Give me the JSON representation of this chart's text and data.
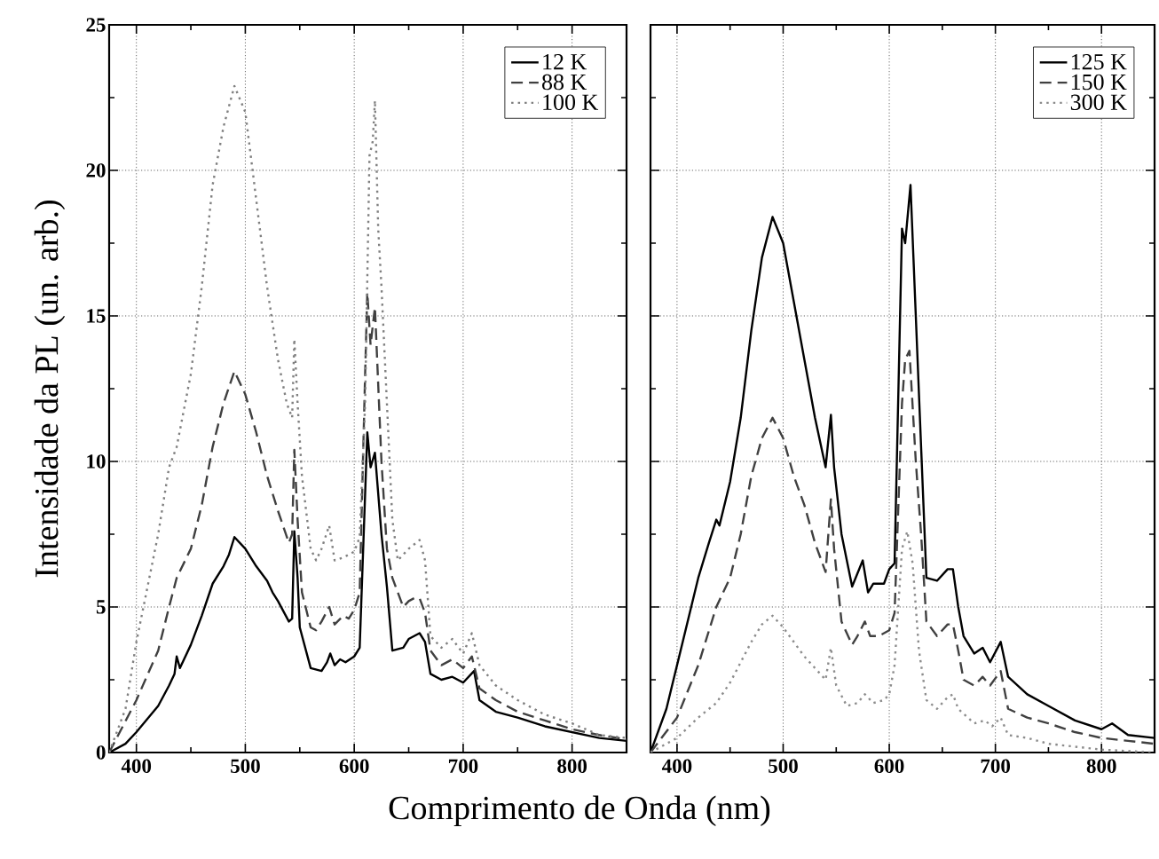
{
  "chart_data": [
    {
      "type": "line",
      "xlabel": "Comprimento de Onda (nm)",
      "ylabel": "Intensidade da PL (un. arb.)",
      "xlim": [
        375,
        850
      ],
      "ylim": [
        0,
        25
      ],
      "xticks": [
        400,
        500,
        600,
        700,
        800
      ],
      "yticks": [
        0,
        5,
        10,
        15,
        20,
        25
      ],
      "grid": true,
      "legend": "top right",
      "series": [
        {
          "name": "12 K",
          "color": "#000000",
          "line_style": "solid",
          "x": [
            375,
            390,
            400,
            420,
            430,
            435,
            437,
            440,
            450,
            460,
            470,
            480,
            485,
            490,
            500,
            510,
            520,
            525,
            530,
            540,
            543,
            545,
            548,
            550,
            560,
            570,
            575,
            578,
            582,
            587,
            592,
            600,
            605,
            612,
            615,
            619,
            625,
            630,
            635,
            645,
            650,
            660,
            665,
            670,
            680,
            690,
            700,
            710,
            715,
            730,
            750,
            775,
            800,
            825,
            850
          ],
          "values": [
            0,
            0.3,
            0.7,
            1.6,
            2.3,
            2.7,
            3.3,
            2.9,
            3.7,
            4.7,
            5.8,
            6.4,
            6.8,
            7.4,
            7.0,
            6.4,
            5.9,
            5.5,
            5.2,
            4.5,
            4.6,
            7.6,
            6.0,
            4.3,
            2.9,
            2.8,
            3.1,
            3.4,
            3.0,
            3.2,
            3.1,
            3.3,
            3.6,
            11.0,
            9.8,
            10.3,
            7.5,
            5.7,
            3.5,
            3.6,
            3.9,
            4.1,
            3.8,
            2.7,
            2.5,
            2.6,
            2.4,
            2.8,
            1.8,
            1.4,
            1.2,
            0.9,
            0.7,
            0.5,
            0.4
          ]
        },
        {
          "name": "88 K",
          "color": "#404040",
          "line_style": "dashed",
          "x": [
            375,
            400,
            420,
            430,
            437,
            450,
            460,
            470,
            480,
            490,
            500,
            510,
            520,
            530,
            540,
            543,
            545,
            548,
            552,
            560,
            565,
            570,
            577,
            582,
            590,
            595,
            600,
            605,
            610,
            612,
            615,
            619,
            625,
            630,
            635,
            645,
            650,
            655,
            660,
            665,
            670,
            680,
            690,
            700,
            708,
            715,
            730,
            750,
            775,
            800,
            825,
            850
          ],
          "values": [
            0,
            1.8,
            3.5,
            5.0,
            6.0,
            7.0,
            8.5,
            10.5,
            12.0,
            13.1,
            12.3,
            11.0,
            9.5,
            8.3,
            7.2,
            7.5,
            10.4,
            8.0,
            5.5,
            4.3,
            4.2,
            4.5,
            5.0,
            4.4,
            4.7,
            4.6,
            4.9,
            5.5,
            13.0,
            15.8,
            14.0,
            15.3,
            10.0,
            7.0,
            6.0,
            5.0,
            5.2,
            5.3,
            5.3,
            4.8,
            3.5,
            3.0,
            3.2,
            2.9,
            3.3,
            2.2,
            1.8,
            1.4,
            1.1,
            0.8,
            0.6,
            0.45
          ]
        },
        {
          "name": "100 K",
          "color": "#808080",
          "line_style": "dotted",
          "x": [
            375,
            390,
            400,
            420,
            430,
            437,
            450,
            460,
            470,
            480,
            490,
            500,
            510,
            520,
            530,
            538,
            543,
            545,
            548,
            552,
            560,
            565,
            570,
            577,
            582,
            590,
            600,
            605,
            610,
            614,
            617,
            619,
            622,
            625,
            630,
            635,
            640,
            650,
            660,
            665,
            670,
            680,
            690,
            700,
            708,
            715,
            730,
            750,
            775,
            800,
            825,
            850
          ],
          "values": [
            0,
            1.5,
            3.8,
            7.5,
            9.8,
            10.5,
            13.0,
            16.0,
            19.5,
            21.5,
            22.9,
            22.0,
            19.0,
            16.0,
            13.5,
            12.0,
            11.5,
            14.2,
            12.0,
            9.5,
            7.0,
            6.6,
            7.0,
            7.8,
            6.6,
            6.7,
            6.9,
            7.4,
            12.0,
            20.5,
            21.0,
            22.4,
            18.0,
            16.0,
            12.0,
            8.0,
            6.6,
            7.0,
            7.3,
            6.6,
            4.0,
            3.6,
            3.9,
            3.4,
            4.1,
            3.0,
            2.3,
            1.8,
            1.3,
            1.0,
            0.6,
            0.5
          ]
        }
      ]
    },
    {
      "type": "line",
      "xlim": [
        375,
        850
      ],
      "ylim": [
        0,
        25
      ],
      "xticks": [
        400,
        500,
        600,
        700,
        800
      ],
      "yticks": [
        0,
        5,
        10,
        15,
        20,
        25
      ],
      "tick_labels": "x",
      "grid": true,
      "legend": "top right",
      "series": [
        {
          "name": "125 K",
          "color": "#000000",
          "line_style": "solid",
          "x": [
            375,
            390,
            400,
            420,
            430,
            437,
            440,
            450,
            460,
            470,
            480,
            490,
            500,
            510,
            520,
            530,
            540,
            545,
            548,
            555,
            565,
            575,
            580,
            585,
            595,
            600,
            605,
            612,
            615,
            620,
            625,
            630,
            635,
            645,
            655,
            660,
            665,
            670,
            680,
            688,
            695,
            705,
            712,
            730,
            750,
            775,
            800,
            810,
            825,
            850
          ],
          "values": [
            0,
            1.5,
            3.0,
            6.0,
            7.2,
            8.0,
            7.8,
            9.3,
            11.5,
            14.5,
            17.0,
            18.4,
            17.5,
            15.5,
            13.5,
            11.5,
            9.8,
            11.6,
            9.8,
            7.5,
            5.7,
            6.6,
            5.5,
            5.8,
            5.8,
            6.3,
            6.5,
            18.0,
            17.5,
            19.5,
            15.0,
            10.5,
            6.0,
            5.9,
            6.3,
            6.3,
            5.0,
            4.0,
            3.4,
            3.6,
            3.1,
            3.8,
            2.6,
            2.0,
            1.6,
            1.1,
            0.8,
            1.0,
            0.6,
            0.5
          ]
        },
        {
          "name": "150 K",
          "color": "#404040",
          "line_style": "dashed",
          "x": [
            375,
            400,
            420,
            437,
            450,
            460,
            470,
            480,
            490,
            500,
            510,
            520,
            530,
            540,
            545,
            548,
            555,
            565,
            570,
            577,
            582,
            590,
            600,
            605,
            612,
            615,
            619,
            625,
            630,
            635,
            645,
            655,
            660,
            665,
            670,
            680,
            688,
            695,
            705,
            712,
            730,
            750,
            775,
            800,
            825,
            850
          ],
          "values": [
            0,
            1.2,
            3.0,
            5.0,
            6.0,
            7.5,
            9.5,
            10.8,
            11.5,
            10.8,
            9.5,
            8.5,
            7.2,
            6.2,
            8.7,
            7.0,
            4.5,
            3.7,
            4.0,
            4.5,
            4.0,
            4.0,
            4.2,
            4.8,
            12.0,
            13.5,
            13.8,
            10.0,
            7.5,
            4.5,
            4.0,
            4.4,
            4.4,
            3.5,
            2.5,
            2.3,
            2.6,
            2.3,
            2.8,
            1.5,
            1.2,
            1.0,
            0.7,
            0.5,
            0.4,
            0.3
          ]
        },
        {
          "name": "300 K",
          "color": "#8c8c8c",
          "line_style": "dotted",
          "x": [
            375,
            400,
            420,
            437,
            450,
            470,
            480,
            490,
            500,
            520,
            540,
            545,
            550,
            560,
            570,
            577,
            585,
            595,
            600,
            605,
            612,
            617,
            622,
            628,
            635,
            645,
            655,
            660,
            665,
            680,
            690,
            697,
            705,
            712,
            730,
            750,
            775,
            800,
            825,
            850
          ],
          "values": [
            0,
            0.5,
            1.2,
            1.7,
            2.4,
            3.8,
            4.4,
            4.7,
            4.3,
            3.3,
            2.5,
            3.6,
            2.3,
            1.6,
            1.7,
            2.0,
            1.7,
            1.8,
            2.0,
            3.0,
            7.0,
            7.6,
            6.5,
            3.5,
            1.8,
            1.5,
            1.9,
            2.0,
            1.5,
            1.0,
            1.1,
            0.9,
            1.2,
            0.6,
            0.5,
            0.3,
            0.2,
            0.1,
            0.05,
            0.0
          ]
        }
      ]
    }
  ]
}
